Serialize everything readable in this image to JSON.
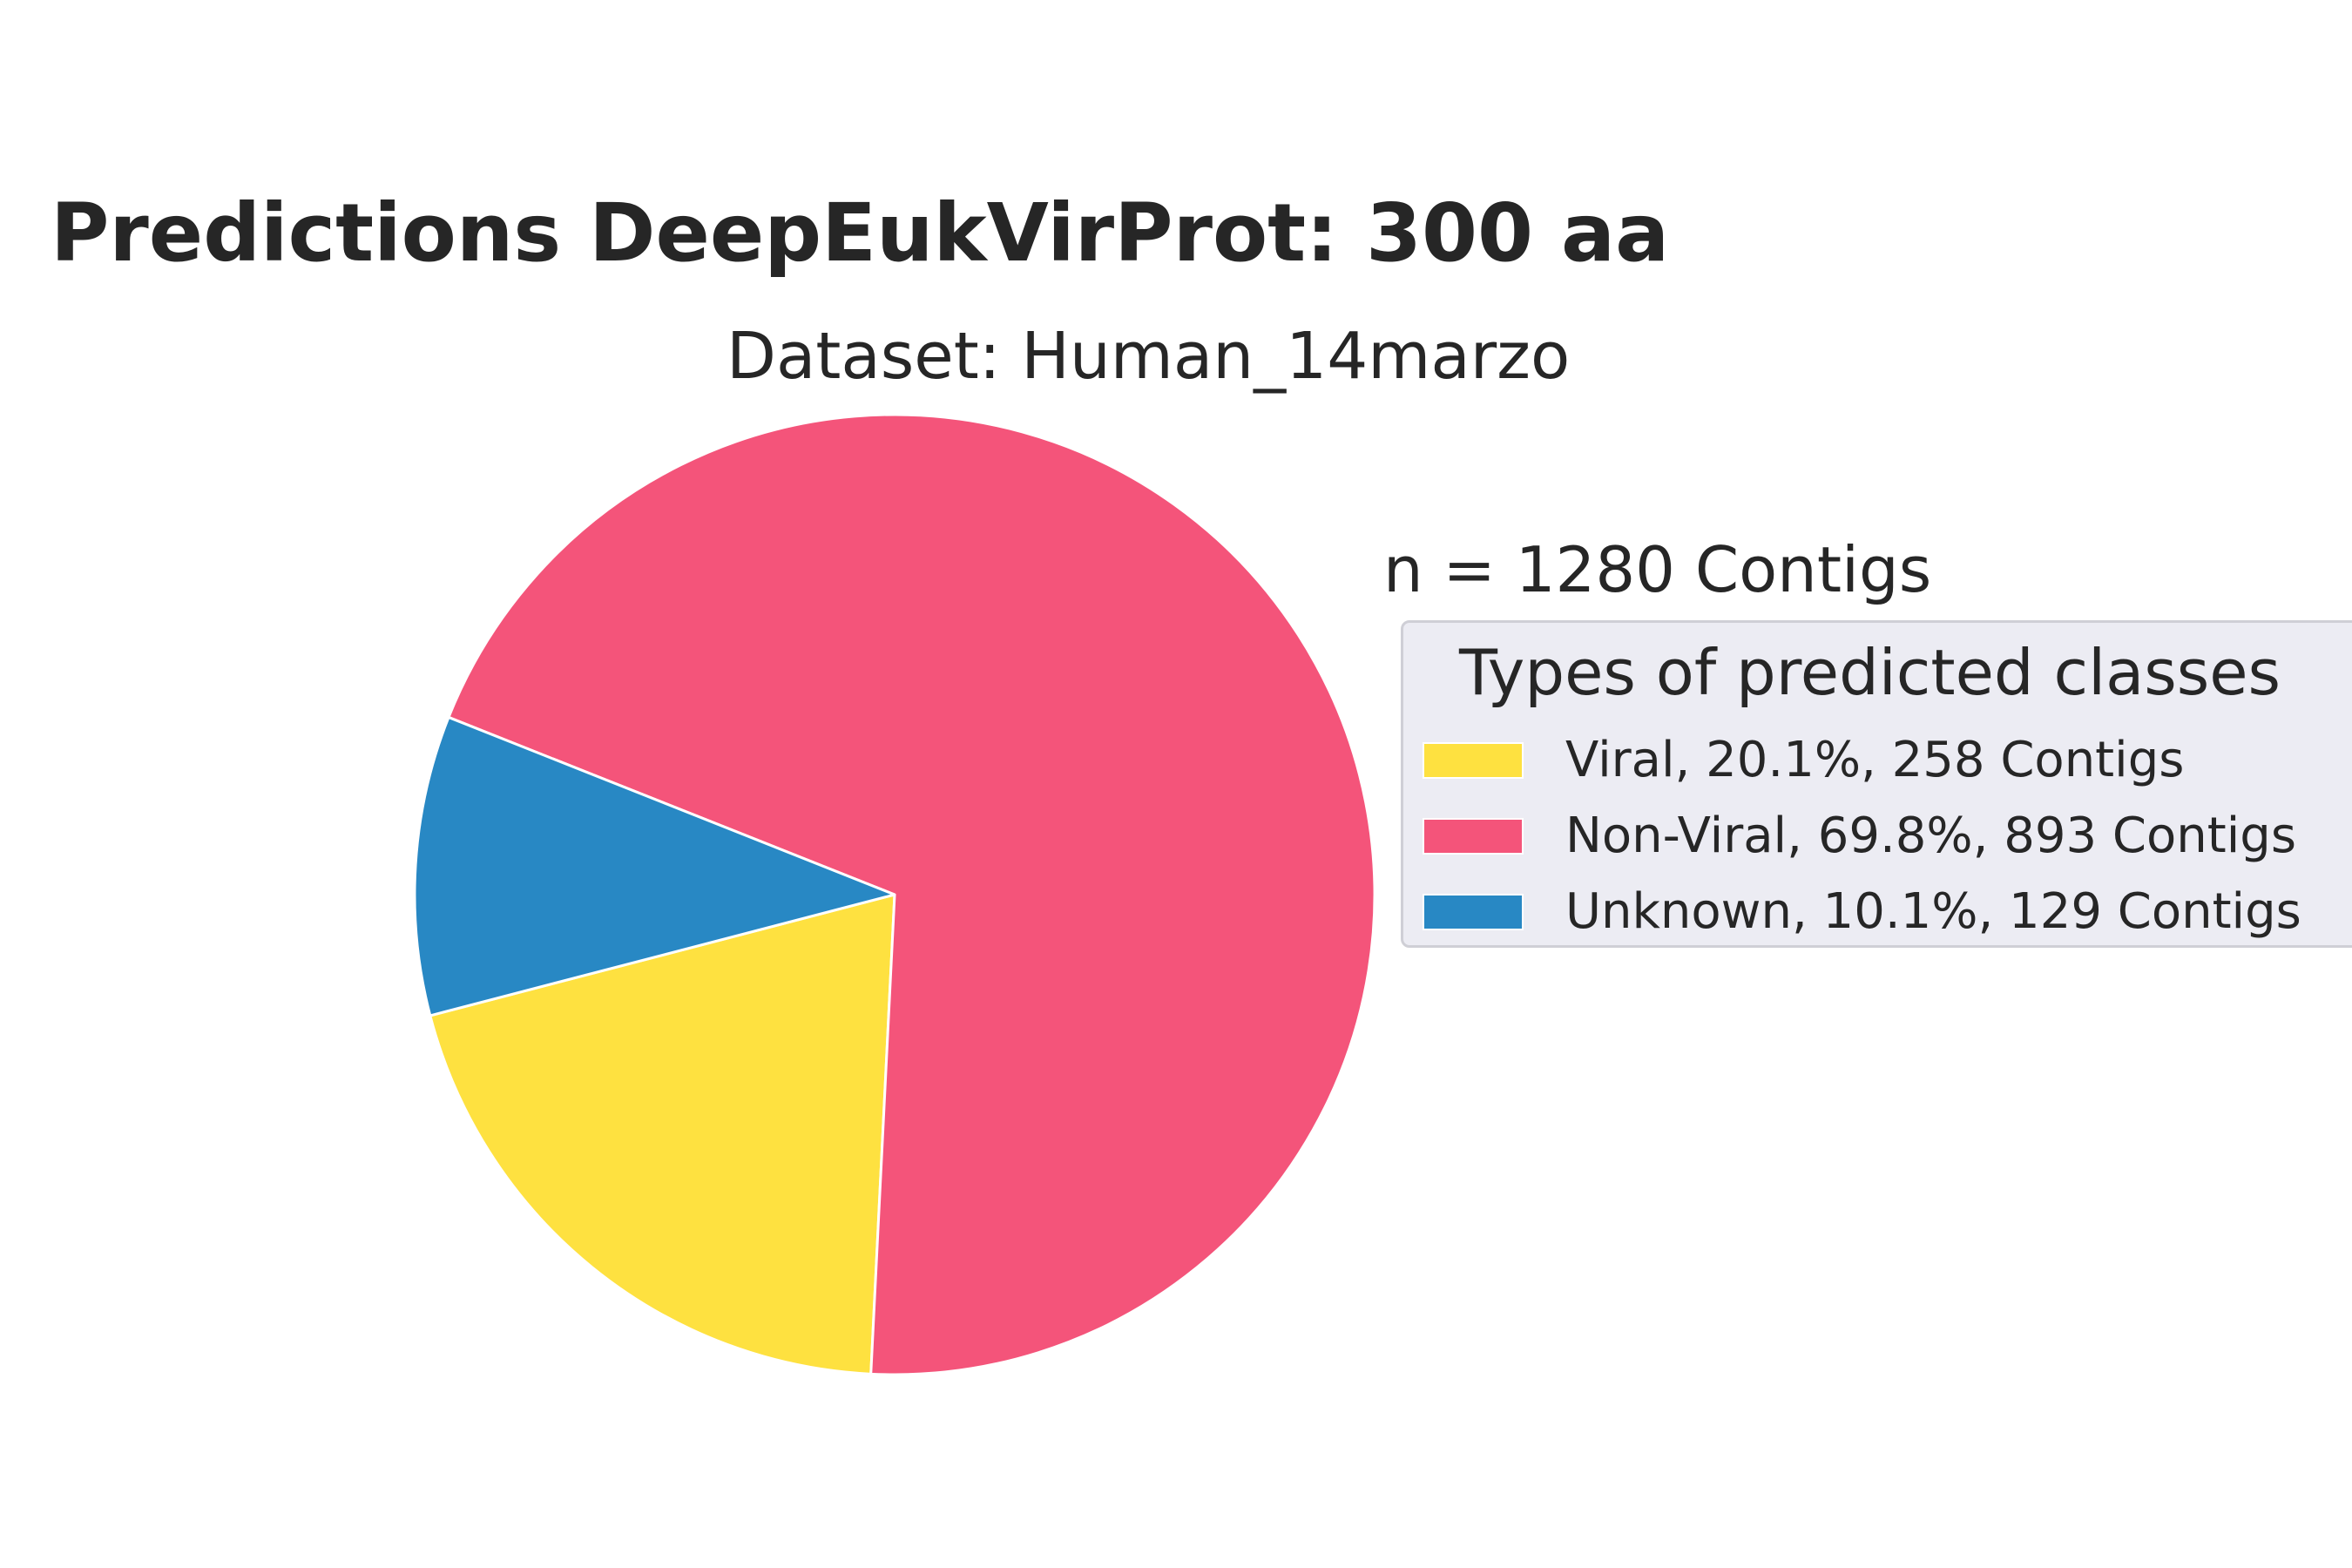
{
  "chart_data": {
    "type": "pie",
    "title": "Predictions DeepEukVirProt: 300 aa",
    "subtitle": "Dataset: Human_14marzo",
    "annotation": "n = 1280 Contigs",
    "legend_title": "Types of predicted classes",
    "legend_position": "right",
    "slices": [
      {
        "label": "Viral, 20.1%, 258 Contigs",
        "value": 258,
        "percent": 20.1,
        "color": "#fee140"
      },
      {
        "label": "Non-Viral, 69.8%, 893 Contigs",
        "value": 893,
        "percent": 69.8,
        "color": "#f4547a"
      },
      {
        "label": "Unknown, 10.1%, 129 Contigs",
        "value": 129,
        "percent": 10.1,
        "color": "#2888c4"
      }
    ]
  }
}
